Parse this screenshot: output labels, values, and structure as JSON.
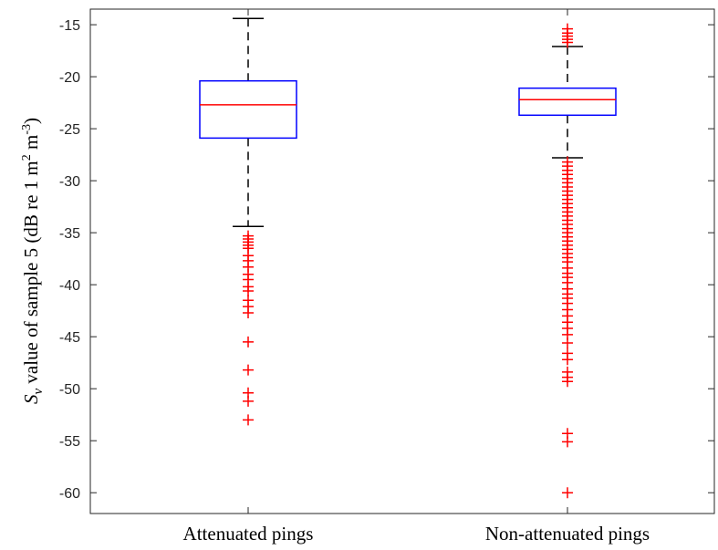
{
  "chart_data": {
    "type": "boxplot",
    "ylabel_parts": [
      "S",
      "v",
      " value of sample 5 (dB re 1 m",
      "2",
      " m",
      "-3",
      ")"
    ],
    "ylim": [
      -62,
      -13.5
    ],
    "yticks": [
      -15,
      -20,
      -25,
      -30,
      -35,
      -40,
      -45,
      -50,
      -55,
      -60
    ],
    "grid": false,
    "categories": [
      "Attenuated pings",
      "Non-attenuated pings"
    ],
    "boxes": [
      {
        "category": "Attenuated pings",
        "whisker_high": -14.4,
        "q3": -20.4,
        "median": -22.7,
        "q1": -25.9,
        "whisker_low": -34.4,
        "outliers": [
          -35.3,
          -35.6,
          -35.9,
          -36.2,
          -36.5,
          -37.2,
          -37.7,
          -38.3,
          -39.0,
          -39.5,
          -40.2,
          -40.6,
          -41.5,
          -42.1,
          -42.7,
          -45.5,
          -48.2,
          -50.4,
          -51.2,
          -53.0
        ]
      },
      {
        "category": "Non-attenuated pings",
        "whisker_high": -17.1,
        "q3": -21.1,
        "median": -22.2,
        "q1": -23.7,
        "whisker_low": -27.8,
        "outliers": [
          -15.4,
          -15.8,
          -16.1,
          -16.4,
          -16.7,
          -28.2,
          -28.6,
          -29.0,
          -29.4,
          -29.8,
          -30.2,
          -30.6,
          -31.0,
          -31.4,
          -31.8,
          -32.2,
          -32.6,
          -33.0,
          -33.4,
          -33.8,
          -34.2,
          -34.6,
          -35.0,
          -35.4,
          -35.8,
          -36.2,
          -36.6,
          -37.0,
          -37.4,
          -37.8,
          -38.4,
          -38.9,
          -39.3,
          -39.8,
          -40.4,
          -40.9,
          -41.3,
          -41.8,
          -42.4,
          -43.0,
          -43.6,
          -44.2,
          -44.8,
          -45.6,
          -46.6,
          -47.2,
          -48.4,
          -48.9,
          -49.3,
          -54.3,
          -55.1,
          -60.0
        ]
      }
    ],
    "colors": {
      "box": "#0000ff",
      "median": "#ff0000",
      "outlier": "#ff0000",
      "whisker": "#000000",
      "axis": "#262626"
    }
  }
}
